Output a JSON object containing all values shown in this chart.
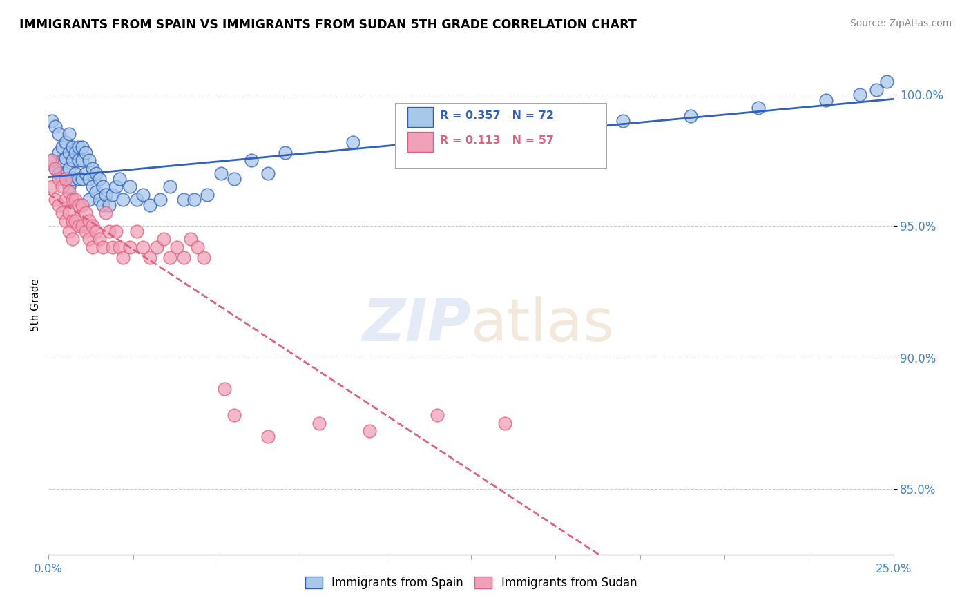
{
  "title": "IMMIGRANTS FROM SPAIN VS IMMIGRANTS FROM SUDAN 5TH GRADE CORRELATION CHART",
  "source": "Source: ZipAtlas.com",
  "ylabel": "5th Grade",
  "R_spain": "0.357",
  "N_spain": "72",
  "R_sudan": "0.113",
  "N_sudan": "57",
  "color_spain": "#A8C8E8",
  "color_sudan": "#F0A0B8",
  "color_spain_line": "#3060C0",
  "color_sudan_line": "#E06080",
  "xlim": [
    0.0,
    0.25
  ],
  "ylim": [
    0.825,
    1.015
  ],
  "yticks": [
    0.85,
    0.9,
    0.95,
    1.0
  ],
  "ytick_labels": [
    "85.0%",
    "90.0%",
    "95.0%",
    "100.0%"
  ],
  "legend_spain": "Immigrants from Spain",
  "legend_sudan": "Immigrants from Sudan",
  "spain_x": [
    0.001,
    0.001,
    0.002,
    0.002,
    0.003,
    0.003,
    0.003,
    0.004,
    0.004,
    0.004,
    0.005,
    0.005,
    0.005,
    0.006,
    0.006,
    0.006,
    0.006,
    0.007,
    0.007,
    0.007,
    0.008,
    0.008,
    0.009,
    0.009,
    0.009,
    0.01,
    0.01,
    0.01,
    0.011,
    0.011,
    0.012,
    0.012,
    0.012,
    0.013,
    0.013,
    0.014,
    0.014,
    0.015,
    0.015,
    0.016,
    0.016,
    0.017,
    0.018,
    0.019,
    0.02,
    0.021,
    0.022,
    0.024,
    0.026,
    0.028,
    0.03,
    0.033,
    0.036,
    0.04,
    0.043,
    0.047,
    0.051,
    0.055,
    0.06,
    0.065,
    0.07,
    0.09,
    0.11,
    0.13,
    0.15,
    0.17,
    0.19,
    0.21,
    0.23,
    0.24,
    0.245,
    0.248
  ],
  "spain_y": [
    0.99,
    0.975,
    0.988,
    0.972,
    0.985,
    0.978,
    0.97,
    0.98,
    0.975,
    0.968,
    0.982,
    0.976,
    0.97,
    0.985,
    0.978,
    0.972,
    0.965,
    0.98,
    0.975,
    0.968,
    0.978,
    0.97,
    0.98,
    0.975,
    0.968,
    0.98,
    0.975,
    0.968,
    0.978,
    0.97,
    0.975,
    0.968,
    0.96,
    0.972,
    0.965,
    0.97,
    0.963,
    0.968,
    0.96,
    0.965,
    0.958,
    0.962,
    0.958,
    0.962,
    0.965,
    0.968,
    0.96,
    0.965,
    0.96,
    0.962,
    0.958,
    0.96,
    0.965,
    0.96,
    0.96,
    0.962,
    0.97,
    0.968,
    0.975,
    0.97,
    0.978,
    0.982,
    0.985,
    0.988,
    0.985,
    0.99,
    0.992,
    0.995,
    0.998,
    1.0,
    1.002,
    1.005
  ],
  "sudan_x": [
    0.001,
    0.001,
    0.002,
    0.002,
    0.003,
    0.003,
    0.004,
    0.004,
    0.005,
    0.005,
    0.005,
    0.006,
    0.006,
    0.006,
    0.007,
    0.007,
    0.007,
    0.008,
    0.008,
    0.009,
    0.009,
    0.01,
    0.01,
    0.011,
    0.011,
    0.012,
    0.012,
    0.013,
    0.013,
    0.014,
    0.015,
    0.016,
    0.017,
    0.018,
    0.019,
    0.02,
    0.021,
    0.022,
    0.024,
    0.026,
    0.028,
    0.03,
    0.032,
    0.034,
    0.036,
    0.038,
    0.04,
    0.042,
    0.044,
    0.046,
    0.052,
    0.055,
    0.065,
    0.08,
    0.095,
    0.115,
    0.135
  ],
  "sudan_y": [
    0.975,
    0.965,
    0.972,
    0.96,
    0.968,
    0.958,
    0.965,
    0.955,
    0.968,
    0.96,
    0.952,
    0.963,
    0.955,
    0.948,
    0.96,
    0.952,
    0.945,
    0.96,
    0.952,
    0.958,
    0.95,
    0.958,
    0.95,
    0.955,
    0.948,
    0.952,
    0.945,
    0.95,
    0.942,
    0.948,
    0.945,
    0.942,
    0.955,
    0.948,
    0.942,
    0.948,
    0.942,
    0.938,
    0.942,
    0.948,
    0.942,
    0.938,
    0.942,
    0.945,
    0.938,
    0.942,
    0.938,
    0.945,
    0.942,
    0.938,
    0.888,
    0.878,
    0.87,
    0.875,
    0.872,
    0.878,
    0.875
  ]
}
